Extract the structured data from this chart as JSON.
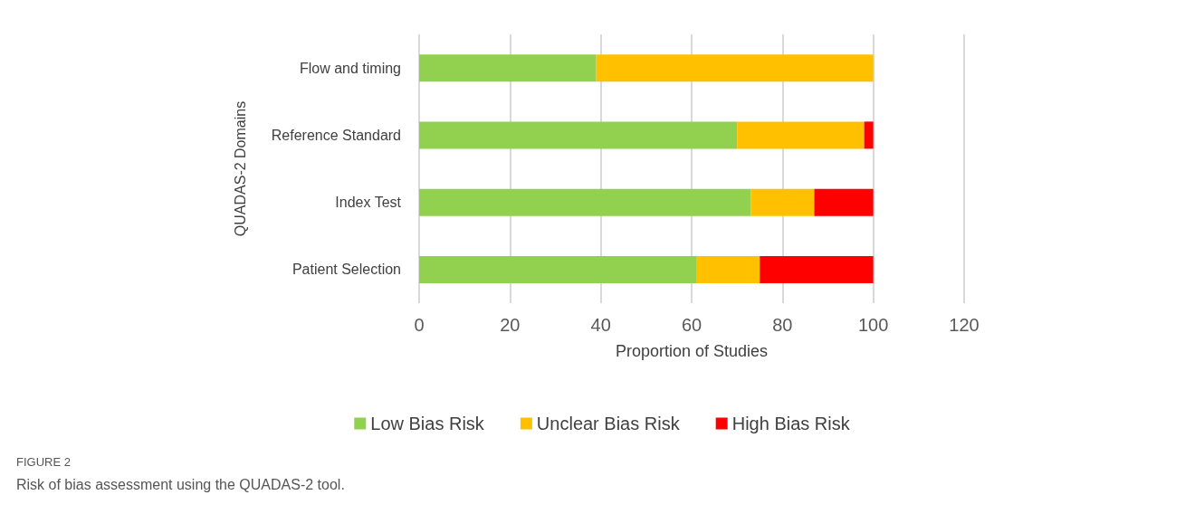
{
  "chart_data": {
    "type": "bar",
    "orientation": "horizontal",
    "stacked": true,
    "categories": [
      "Flow and timing",
      "Reference Standard",
      "Index Test",
      "Patient Selection"
    ],
    "series": [
      {
        "name": "Low Bias Risk",
        "color": "#92d050",
        "values": [
          39,
          70,
          73,
          61
        ]
      },
      {
        "name": "Unclear Bias Risk",
        "color": "#ffc000",
        "values": [
          61,
          28,
          14,
          14
        ]
      },
      {
        "name": "High Bias Risk",
        "color": "#ff0000",
        "values": [
          null,
          2,
          13,
          25
        ]
      }
    ],
    "xlabel": "Proportion of Studies",
    "ylabel": "QUADAS-2 Domains",
    "xlim": [
      0,
      120
    ],
    "xticks": [
      0,
      20,
      40,
      60,
      80,
      100,
      120
    ],
    "grid": "x",
    "legend": "bottom",
    "annotations": [
      "FIGURE 2",
      "Risk of bias assessment using the QUADAS-2 tool."
    ]
  }
}
